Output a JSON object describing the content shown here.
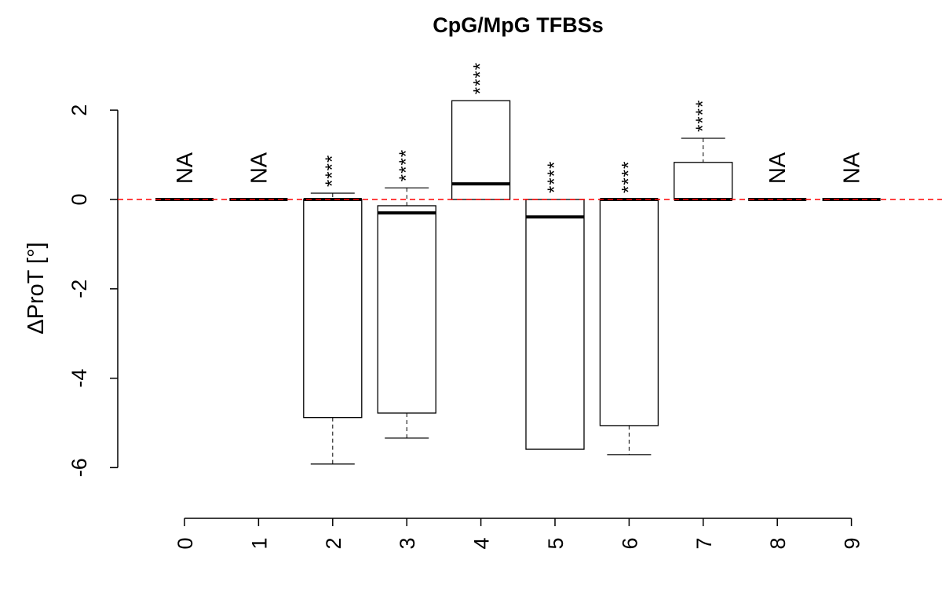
{
  "chart_data": {
    "type": "boxplot",
    "title": "CpG/MpG TFBSs",
    "xlabel": "",
    "ylabel": "ΔProT [°]",
    "ylim": [
      -7,
      2.5
    ],
    "yticks": [
      2,
      0,
      -2,
      -4,
      -6
    ],
    "ytick_labels": [
      "2",
      "0",
      "-2",
      "-4",
      "-6"
    ],
    "categories": [
      "0",
      "1",
      "2",
      "3",
      "4",
      "5",
      "6",
      "7",
      "8",
      "9"
    ],
    "reference_line": {
      "value": 0,
      "color": "#ff0000",
      "style": "dashed"
    },
    "boxes": [
      {
        "category": "0",
        "whisker_low": 0,
        "q1": 0,
        "median": 0,
        "q3": 0,
        "whisker_high": 0,
        "annotation": "NA"
      },
      {
        "category": "1",
        "whisker_low": 0,
        "q1": 0,
        "median": 0,
        "q3": 0,
        "whisker_high": 0,
        "annotation": "NA"
      },
      {
        "category": "2",
        "whisker_low": -5.92,
        "q1": -4.88,
        "median": 0,
        "q3": 0,
        "whisker_high": 0.14,
        "annotation": "****"
      },
      {
        "category": "3",
        "whisker_low": -5.34,
        "q1": -4.78,
        "median": -0.3,
        "q3": -0.14,
        "whisker_high": 0.26,
        "annotation": "****"
      },
      {
        "category": "4",
        "whisker_low": 0,
        "q1": 0,
        "median": 0.35,
        "q3": 2.21,
        "whisker_high": 2.21,
        "annotation": "****"
      },
      {
        "category": "5",
        "whisker_low": -5.59,
        "q1": -5.59,
        "median": -0.39,
        "q3": 0,
        "whisker_high": 0,
        "annotation": "****"
      },
      {
        "category": "6",
        "whisker_low": -5.71,
        "q1": -5.06,
        "median": 0,
        "q3": 0,
        "whisker_high": 0,
        "annotation": "****"
      },
      {
        "category": "7",
        "whisker_low": 0,
        "q1": 0,
        "median": 0,
        "q3": 0.83,
        "whisker_high": 1.37,
        "annotation": "****"
      },
      {
        "category": "8",
        "whisker_low": 0,
        "q1": 0,
        "median": 0,
        "q3": 0,
        "whisker_high": 0,
        "annotation": "NA"
      },
      {
        "category": "9",
        "whisker_low": 0,
        "q1": 0,
        "median": 0,
        "q3": 0,
        "whisker_high": 0,
        "annotation": "NA"
      }
    ]
  }
}
